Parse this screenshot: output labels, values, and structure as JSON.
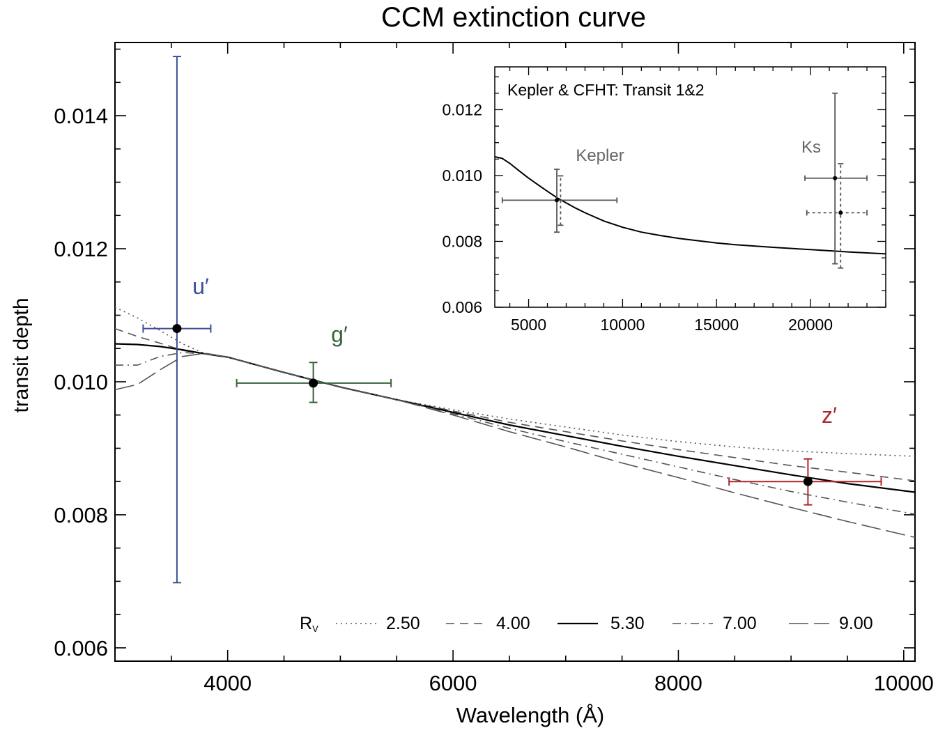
{
  "chart_data": [
    {
      "type": "line",
      "title": "CCM extinction curve",
      "xlabel": "Wavelength (Å)",
      "ylabel": "transit depth",
      "xlim": [
        3000,
        10100
      ],
      "ylim": [
        0.0058,
        0.0151
      ],
      "xticks": [
        4000,
        6000,
        8000,
        10000
      ],
      "xtick_labels": [
        "4000",
        "6000",
        "8000",
        "10000"
      ],
      "yticks": [
        0.006,
        0.008,
        0.01,
        0.012,
        0.014
      ],
      "ytick_labels": [
        "0.006",
        "0.008",
        "0.010",
        "0.012",
        "0.014"
      ],
      "legend_title": "R",
      "legend_title_sub": "V",
      "legend_position": "bottom",
      "series": [
        {
          "name": "2.50",
          "style": "dotted",
          "color": "#555555",
          "x": [
            3000,
            3200,
            3400,
            3600,
            3800,
            4000,
            4500,
            5000,
            5500,
            6000,
            6500,
            7000,
            7500,
            8000,
            8500,
            9000,
            9500,
            10100
          ],
          "y": [
            0.01112,
            0.01096,
            0.01077,
            0.01057,
            0.01042,
            0.01037,
            0.01014,
            0.00992,
            0.00973,
            0.00958,
            0.00944,
            0.00932,
            0.0092,
            0.0091,
            0.00902,
            0.00896,
            0.00892,
            0.00888
          ]
        },
        {
          "name": "4.00",
          "style": "dashed",
          "color": "#555555",
          "x": [
            3000,
            3200,
            3400,
            3600,
            3800,
            4000,
            4500,
            5000,
            5500,
            6000,
            6500,
            7000,
            7500,
            8000,
            8500,
            9000,
            9500,
            10100
          ],
          "y": [
            0.0108,
            0.01068,
            0.01058,
            0.01047,
            0.01042,
            0.01037,
            0.01014,
            0.00992,
            0.00973,
            0.00956,
            0.00939,
            0.00925,
            0.00911,
            0.00898,
            0.00886,
            0.00874,
            0.00864,
            0.00851
          ]
        },
        {
          "name": "5.30",
          "style": "solid",
          "color": "#000000",
          "x": [
            3000,
            3200,
            3400,
            3600,
            3800,
            4000,
            4500,
            5000,
            5500,
            6000,
            6500,
            7000,
            7500,
            8000,
            8500,
            9000,
            9500,
            10100
          ],
          "y": [
            0.01057,
            0.01056,
            0.01053,
            0.01048,
            0.01042,
            0.01037,
            0.01014,
            0.00992,
            0.00973,
            0.00954,
            0.00935,
            0.00919,
            0.00903,
            0.00888,
            0.00874,
            0.0086,
            0.00847,
            0.00834
          ]
        },
        {
          "name": "7.00",
          "style": "dashdot",
          "color": "#555555",
          "x": [
            3000,
            3200,
            3400,
            3600,
            3800,
            4000,
            4500,
            5000,
            5500,
            6000,
            6500,
            7000,
            7500,
            8000,
            8500,
            9000,
            9500,
            10100
          ],
          "y": [
            0.01025,
            0.01025,
            0.01038,
            0.01044,
            0.01042,
            0.01037,
            0.01014,
            0.00992,
            0.00973,
            0.00952,
            0.0093,
            0.0091,
            0.00891,
            0.00872,
            0.00853,
            0.00835,
            0.00819,
            0.00801
          ]
        },
        {
          "name": "9.00",
          "style": "longdash",
          "color": "#555555",
          "x": [
            3000,
            3200,
            3400,
            3600,
            3800,
            4000,
            4500,
            5000,
            5500,
            6000,
            6500,
            7000,
            7500,
            8000,
            8500,
            9000,
            9500,
            10100
          ],
          "y": [
            0.00988,
            0.00996,
            0.01018,
            0.01038,
            0.01043,
            0.01037,
            0.01014,
            0.00992,
            0.00973,
            0.0095,
            0.00925,
            0.00902,
            0.00878,
            0.00856,
            0.00833,
            0.00811,
            0.0079,
            0.00766
          ]
        }
      ],
      "points": [
        {
          "label": "u′",
          "color": "#3d4f97",
          "x": 3550,
          "y": 0.0108,
          "xerr": [
            3250,
            3850
          ],
          "yerr": [
            0.00698,
            0.01489
          ]
        },
        {
          "label": "g′",
          "color": "#36643a",
          "x": 4760,
          "y": 0.00998,
          "xerr": [
            4080,
            5450
          ],
          "yerr": [
            0.00969,
            0.01029
          ]
        },
        {
          "label": "z′",
          "color": "#b0262a",
          "x": 9150,
          "y": 0.0085,
          "xerr": [
            8450,
            9800
          ],
          "yerr": [
            0.00815,
            0.00884
          ]
        }
      ]
    },
    {
      "type": "line",
      "title": "Kepler & CFHT: Transit 1&2",
      "xlim": [
        3200,
        24000
      ],
      "ylim": [
        0.006,
        0.0133
      ],
      "xticks": [
        5000,
        10000,
        15000,
        20000
      ],
      "xtick_labels": [
        "5000",
        "10000",
        "15000",
        "20000"
      ],
      "yticks": [
        0.006,
        0.008,
        0.01,
        0.012
      ],
      "ytick_labels": [
        "0.006",
        "0.008",
        "0.010",
        "0.012"
      ],
      "annotations": [
        "Kepler",
        "Ks"
      ],
      "series": [
        {
          "name": "model",
          "style": "solid",
          "color": "#000000",
          "x": [
            3200,
            3600,
            4000,
            4500,
            5000,
            5500,
            6000,
            6500,
            7000,
            7500,
            8000,
            9000,
            10000,
            11000,
            12000,
            13000,
            14000,
            15000,
            16000,
            18000,
            20000,
            22000,
            24000
          ],
          "y": [
            0.01057,
            0.01052,
            0.01037,
            0.01014,
            0.00992,
            0.00972,
            0.00952,
            0.00933,
            0.00917,
            0.00901,
            0.00887,
            0.00862,
            0.00843,
            0.00828,
            0.00818,
            0.00809,
            0.00802,
            0.00795,
            0.0079,
            0.00782,
            0.00775,
            0.00768,
            0.00762
          ]
        }
      ],
      "points": [
        {
          "label": "Kepler transit 1",
          "style": "solid",
          "color": "#555555",
          "x": 6500,
          "y": 0.00925,
          "xerr": [
            3600,
            9700
          ],
          "yerr": [
            0.00828,
            0.01019
          ]
        },
        {
          "label": "Kepler transit 2",
          "style": "dotted",
          "color": "#555555",
          "x": 6700,
          "y": 0.00925,
          "xerr": [
            6700,
            6700
          ],
          "yerr": [
            0.00849,
            0.00999
          ]
        },
        {
          "label": "Ks transit 1",
          "style": "solid",
          "color": "#555555",
          "x": 21300,
          "y": 0.00992,
          "xerr": [
            19700,
            23000
          ],
          "yerr": [
            0.00732,
            0.0125
          ]
        },
        {
          "label": "Ks transit 2",
          "style": "dotted",
          "color": "#555555",
          "x": 21600,
          "y": 0.00887,
          "xerr": [
            19800,
            23000
          ],
          "yerr": [
            0.00719,
            0.01036
          ]
        }
      ]
    }
  ]
}
